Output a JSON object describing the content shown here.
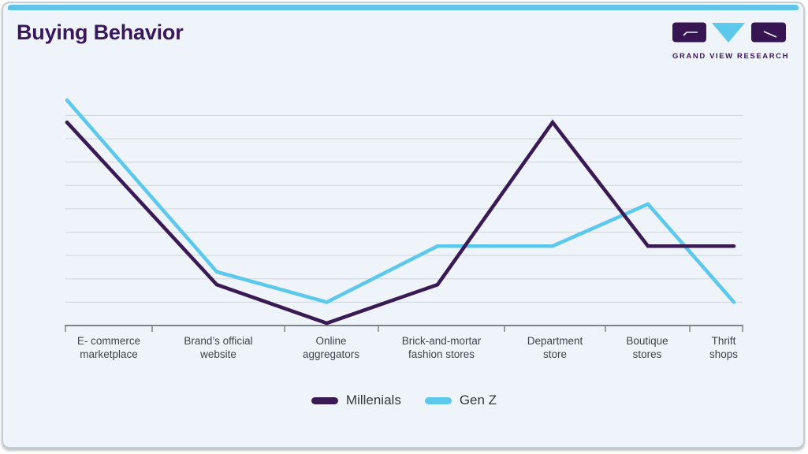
{
  "page": {
    "title": "Buying Behavior"
  },
  "logo": {
    "wordmark": "GRAND VIEW RESEARCH"
  },
  "colors": {
    "accent_bar": "#62c4e9",
    "title_text": "#3a175c",
    "logo_purple": "#371553",
    "logo_blue": "#5bc8ec",
    "gridline": "#cdd5da",
    "axis": "#7c858b",
    "axis_label_text": "#3d434b",
    "card_background": "#eef4f9",
    "card_border": "#c6ced4",
    "millenials_line": "#3a1a54",
    "gen_z_line": "#5bc8ec"
  },
  "chart_data": {
    "type": "line",
    "title": "Buying Behavior",
    "categories": [
      "E- commerce\nmarketplace",
      "Brand’s official\nwebsite",
      "Online\naggregators",
      "Brick-and-mortar\nfashion stores",
      "Department\nstore",
      "Boutique\nstores",
      "Thrift\nshops"
    ],
    "series": [
      {
        "name": "Millenials",
        "color": "#3a1a54",
        "values": [
          8.7,
          1.75,
          0.1,
          1.75,
          8.7,
          3.4,
          3.4
        ]
      },
      {
        "name": "Gen Z",
        "color": "#5bc8ec",
        "values": [
          9.65,
          2.3,
          1.0,
          3.4,
          3.4,
          5.2,
          1.0
        ]
      }
    ],
    "xlabel": "",
    "ylabel": "",
    "ylim": [
      0,
      10
    ],
    "grid": true,
    "gridline_levels": [
      1,
      2,
      3,
      4,
      5,
      6,
      7,
      8,
      9
    ],
    "y_axis_labels_visible": false,
    "legend_position": "bottom-center",
    "note": "y-axis shows no numeric labels; values estimated in gridline units (baseline = 0, one gridline spacing = 1 unit)"
  }
}
